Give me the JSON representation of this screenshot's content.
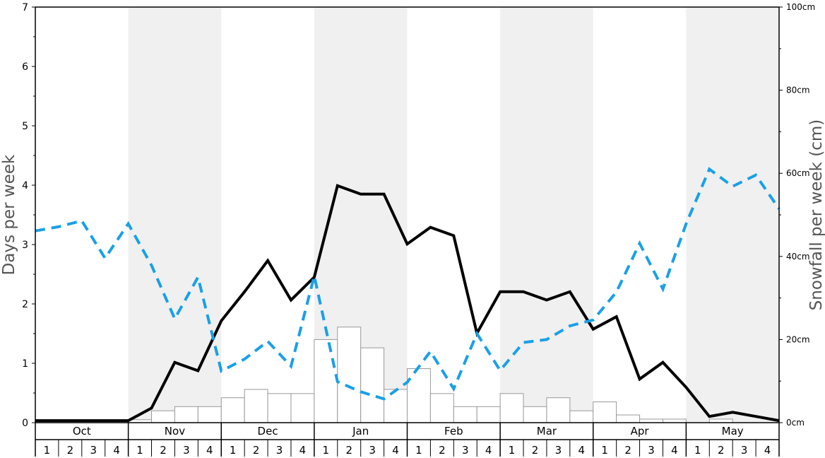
{
  "chart_data": {
    "type": "bar",
    "title": "",
    "ylabel_left": "Days per week",
    "ylabel_right": "Snowfall per week (cm)",
    "ylim_left": [
      0,
      7
    ],
    "ylim_right": [
      0,
      100
    ],
    "left_ticks": [
      "0",
      "1",
      "2",
      "3",
      "4",
      "5",
      "6",
      "7"
    ],
    "right_ticks": [
      "0cm",
      "20cm",
      "40cm",
      "60cm",
      "80cm",
      "100cm"
    ],
    "months": [
      "Oct",
      "Nov",
      "Dec",
      "Jan",
      "Feb",
      "Mar",
      "Apr",
      "May"
    ],
    "week_labels": [
      "1",
      "2",
      "3",
      "4"
    ],
    "shaded_months": [
      "Nov",
      "Jan",
      "Mar",
      "May"
    ],
    "colors": {
      "snowfall_line": "#000000",
      "days_line": "#1aa0e6",
      "bars_fill": "#ffffff",
      "bars_stroke": "#999999",
      "shade": "#f0f0f0"
    },
    "series": [
      {
        "type": "bar",
        "axis": "left",
        "values": [
          0,
          0,
          0,
          0,
          0.05,
          0.2,
          0.27,
          0.27,
          0.42,
          0.56,
          0.49,
          0.49,
          1.4,
          1.61,
          1.26,
          0.56,
          0.91,
          0.49,
          0.27,
          0.27,
          0.49,
          0.27,
          0.42,
          0.2,
          0.35,
          0.13,
          0.06,
          0.06,
          0,
          0.06,
          0,
          0
        ]
      },
      {
        "type": "line",
        "style": "solid",
        "axis": "right",
        "values": [
          0.5,
          0.5,
          0.5,
          0.5,
          0.5,
          3.5,
          14.5,
          12.5,
          24.5,
          31.5,
          39,
          29.5,
          35,
          57,
          55,
          55,
          43,
          47,
          45,
          21.5,
          31.5,
          31.5,
          29.5,
          31.5,
          22.5,
          25.5,
          10.5,
          14.5,
          8.5,
          1.5,
          2.5,
          1.5,
          0.5
        ]
      },
      {
        "type": "line",
        "style": "dashed",
        "axis": "left",
        "values": [
          3.23,
          3.3,
          3.4,
          2.77,
          3.35,
          2.65,
          1.75,
          2.45,
          0.87,
          1.07,
          1.37,
          0.95,
          2.47,
          0.69,
          0.52,
          0.4,
          0.68,
          1.2,
          0.57,
          1.5,
          0.88,
          1.35,
          1.4,
          1.63,
          1.73,
          2.2,
          3.02,
          2.25,
          3.35,
          4.27,
          3.98,
          4.17,
          3.6
        ]
      }
    ]
  }
}
